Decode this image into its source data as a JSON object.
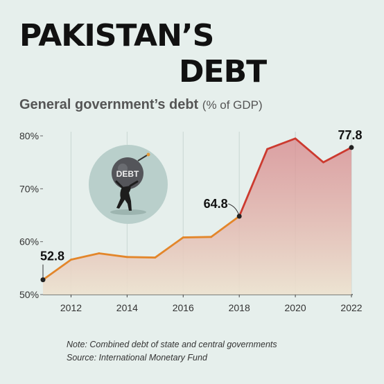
{
  "header": {
    "title_line1": "PAKISTAN’S",
    "title_line2": "DEBT",
    "subtitle_main": "General government’s debt",
    "subtitle_unit": "(% of GDP)"
  },
  "chart_data": {
    "type": "area",
    "title": "General government’s debt",
    "ylabel": "(% of GDP)",
    "x": [
      2011,
      2012,
      2013,
      2014,
      2015,
      2016,
      2017,
      2018,
      2019,
      2020,
      2021,
      2022
    ],
    "series": [
      {
        "values": [
          52.8,
          56.6,
          57.8,
          57.1,
          57.0,
          60.8,
          60.9,
          64.8,
          77.5,
          79.5,
          75.0,
          77.8
        ]
      }
    ],
    "ylim": [
      50,
      80
    ],
    "yticks": [
      50,
      60,
      70,
      80
    ],
    "ytick_labels": [
      "50%",
      "60%",
      "70%",
      "80%"
    ],
    "xticks": [
      2012,
      2014,
      2016,
      2018,
      2020,
      2022
    ],
    "xtick_labels": [
      "2012",
      "2014",
      "2016",
      "2018",
      "2020",
      "2022"
    ],
    "annotations": [
      {
        "x": 2011,
        "y": 52.8,
        "label": "52.8"
      },
      {
        "x": 2018,
        "y": 64.8,
        "label": "64.8"
      },
      {
        "x": 2022,
        "y": 77.8,
        "label": "77.8"
      }
    ],
    "grid": "vertical",
    "colors": {
      "before": "#e3862a",
      "after": "#cc3a2f"
    }
  },
  "illustration": {
    "icon": "debt-bomb-carrier-icon",
    "label": "DEBT"
  },
  "footer": {
    "note": "Note: Combined debt of state and central governments",
    "source": "Source: International Monetary Fund"
  }
}
